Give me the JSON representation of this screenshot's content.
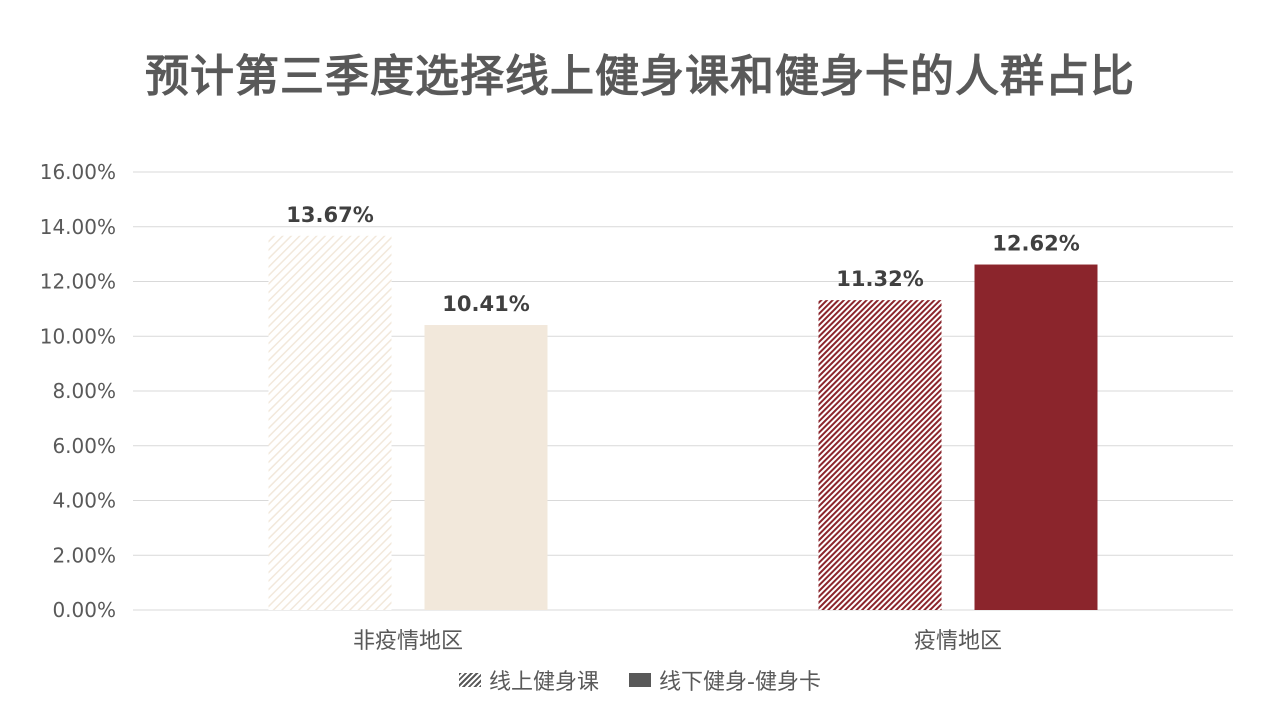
{
  "title": "预计第三季度选择线上健身课和健身卡的人群占比",
  "chart_data": {
    "type": "bar",
    "categories": [
      "非疫情地区",
      "疫情地区"
    ],
    "series": [
      {
        "name": "线上健身课",
        "values": [
          13.67,
          11.32
        ]
      },
      {
        "name": "线下健身-健身卡",
        "values": [
          10.41,
          12.62
        ]
      }
    ],
    "value_labels": [
      [
        "13.67%",
        "11.32%"
      ],
      [
        "10.41%",
        "12.62%"
      ]
    ],
    "ylim": [
      0,
      16
    ],
    "yticks": [
      0,
      2,
      4,
      6,
      8,
      10,
      12,
      14,
      16
    ],
    "ytick_labels": [
      "0.00%",
      "2.00%",
      "4.00%",
      "6.00%",
      "8.00%",
      "10.00%",
      "12.00%",
      "14.00%",
      "16.00%"
    ],
    "grid": true,
    "legend_position": "bottom",
    "colors": {
      "non_epidemic": "#F2E8DB",
      "epidemic": "#8B252C",
      "gridline": "#D9D9D9",
      "text": "#595959",
      "label": "#404040"
    }
  },
  "legend": {
    "items": [
      {
        "label": "线上健身课",
        "swatch": "hatch"
      },
      {
        "label": "线下健身-健身卡",
        "swatch": "solid"
      }
    ]
  }
}
